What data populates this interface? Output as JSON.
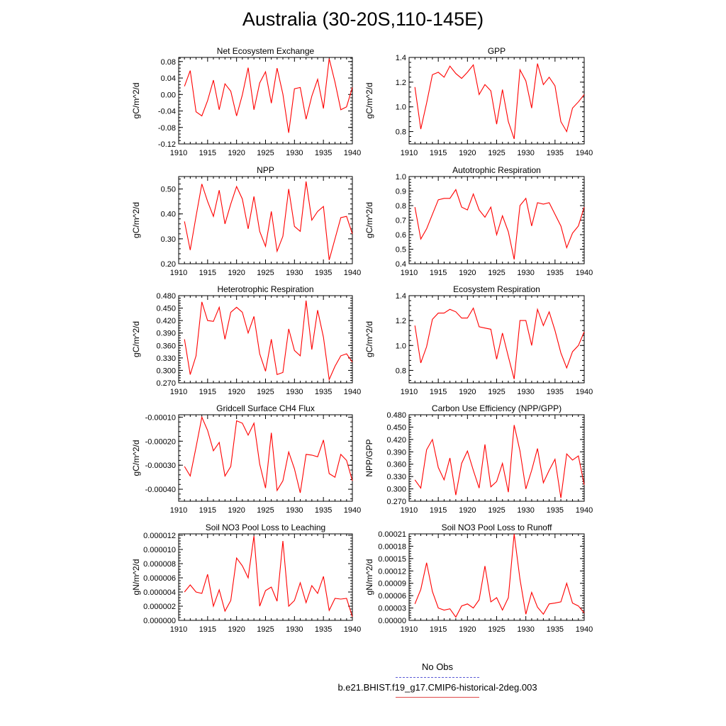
{
  "title": "Australia (30-20S,110-145E)",
  "colors": {
    "series_line": "#ff0000",
    "obs_line": "#5b5bd6",
    "model_line": "#e04a4a",
    "axis": "#000000"
  },
  "legend": {
    "obs_label": "No Obs",
    "model_label": "b.e21.BHIST.f19_g17.CMIP6-historical-2deg.003"
  },
  "chart_data": [
    {
      "type": "line",
      "title": "Net Ecosystem Exchange",
      "ylabel": "gC/m^2/d",
      "xlabel": "",
      "xlim": [
        1910,
        1940
      ],
      "ylim": [
        -0.12,
        0.09
      ],
      "xticks": [
        "1910",
        "1915",
        "1920",
        "1925",
        "1930",
        "1935",
        "1940"
      ],
      "yticks": [
        -0.12,
        -0.08,
        -0.04,
        0.0,
        0.04,
        0.08
      ],
      "ytick_labels": [
        "-0.12",
        "-0.08",
        "-0.04",
        "0.00",
        "0.04",
        "0.08"
      ],
      "x": [
        1911,
        1912,
        1913,
        1914,
        1915,
        1916,
        1917,
        1918,
        1919,
        1920,
        1921,
        1922,
        1923,
        1924,
        1925,
        1926,
        1927,
        1928,
        1929,
        1930,
        1931,
        1932,
        1933,
        1934,
        1935,
        1936,
        1937,
        1938,
        1939,
        1940
      ],
      "y": [
        0.02,
        0.058,
        -0.042,
        -0.052,
        -0.015,
        0.035,
        -0.037,
        0.026,
        0.008,
        -0.052,
        -0.001,
        0.065,
        -0.037,
        0.028,
        0.055,
        -0.021,
        0.064,
        0.001,
        -0.093,
        0.014,
        0.017,
        -0.06,
        -0.004,
        0.037,
        -0.034,
        0.087,
        0.03,
        -0.037,
        -0.03,
        0.017
      ]
    },
    {
      "type": "line",
      "title": "GPP",
      "ylabel": "gC/m^2/d",
      "xlabel": "",
      "xlim": [
        1910,
        1940
      ],
      "ylim": [
        0.7,
        1.4
      ],
      "xticks": [
        "1910",
        "1915",
        "1920",
        "1925",
        "1930",
        "1935",
        "1940"
      ],
      "yticks": [
        0.8,
        1.0,
        1.2,
        1.4
      ],
      "ytick_labels": [
        "0.8",
        "1.0",
        "1.2",
        "1.4"
      ],
      "x": [
        1911,
        1912,
        1913,
        1914,
        1915,
        1916,
        1917,
        1918,
        1919,
        1920,
        1921,
        1922,
        1923,
        1924,
        1925,
        1926,
        1927,
        1928,
        1929,
        1930,
        1931,
        1932,
        1933,
        1934,
        1935,
        1936,
        1937,
        1938,
        1939,
        1940
      ],
      "y": [
        1.16,
        0.82,
        1.03,
        1.26,
        1.28,
        1.24,
        1.33,
        1.27,
        1.23,
        1.28,
        1.34,
        1.1,
        1.18,
        1.13,
        0.86,
        1.14,
        0.88,
        0.74,
        1.3,
        1.21,
        0.99,
        1.35,
        1.18,
        1.24,
        1.17,
        0.88,
        0.8,
        0.99,
        1.04,
        1.1
      ]
    },
    {
      "type": "line",
      "title": "NPP",
      "ylabel": "gC/m^2/d",
      "xlabel": "",
      "xlim": [
        1910,
        1940
      ],
      "ylim": [
        0.2,
        0.55
      ],
      "xticks": [
        "1910",
        "1915",
        "1920",
        "1925",
        "1930",
        "1935",
        "1940"
      ],
      "yticks": [
        0.2,
        0.3,
        0.4,
        0.5
      ],
      "ytick_labels": [
        "0.20",
        "0.30",
        "0.40",
        "0.50"
      ],
      "x": [
        1911,
        1912,
        1913,
        1914,
        1915,
        1916,
        1917,
        1918,
        1919,
        1920,
        1921,
        1922,
        1923,
        1924,
        1925,
        1926,
        1927,
        1928,
        1929,
        1930,
        1931,
        1932,
        1933,
        1934,
        1935,
        1936,
        1937,
        1938,
        1939,
        1940
      ],
      "y": [
        0.37,
        0.255,
        0.39,
        0.52,
        0.45,
        0.39,
        0.495,
        0.36,
        0.44,
        0.51,
        0.46,
        0.34,
        0.47,
        0.33,
        0.27,
        0.41,
        0.25,
        0.31,
        0.5,
        0.35,
        0.33,
        0.53,
        0.375,
        0.41,
        0.43,
        0.215,
        0.3,
        0.385,
        0.39,
        0.32
      ]
    },
    {
      "type": "line",
      "title": "Autotrophic Respiration",
      "ylabel": "gC/m^2/d",
      "xlabel": "",
      "xlim": [
        1910,
        1940
      ],
      "ylim": [
        0.4,
        1.0
      ],
      "xticks": [
        "1910",
        "1915",
        "1920",
        "1925",
        "1930",
        "1935",
        "1940"
      ],
      "yticks": [
        0.4,
        0.5,
        0.6,
        0.7,
        0.8,
        0.9,
        1.0
      ],
      "ytick_labels": [
        "0.4",
        "0.5",
        "0.6",
        "0.7",
        "0.8",
        "0.9",
        "1.0"
      ],
      "x": [
        1911,
        1912,
        1913,
        1914,
        1915,
        1916,
        1917,
        1918,
        1919,
        1920,
        1921,
        1922,
        1923,
        1924,
        1925,
        1926,
        1927,
        1928,
        1929,
        1930,
        1931,
        1932,
        1933,
        1934,
        1935,
        1936,
        1937,
        1938,
        1939,
        1940
      ],
      "y": [
        0.79,
        0.57,
        0.64,
        0.74,
        0.84,
        0.85,
        0.85,
        0.91,
        0.79,
        0.77,
        0.88,
        0.77,
        0.72,
        0.79,
        0.6,
        0.73,
        0.62,
        0.43,
        0.8,
        0.85,
        0.66,
        0.82,
        0.81,
        0.82,
        0.74,
        0.66,
        0.51,
        0.61,
        0.66,
        0.79
      ]
    },
    {
      "type": "line",
      "title": "Heterotrophic Respiration",
      "ylabel": "gC/m^2/d",
      "xlabel": "",
      "xlim": [
        1910,
        1940
      ],
      "ylim": [
        0.27,
        0.48
      ],
      "xticks": [
        "1910",
        "1915",
        "1920",
        "1925",
        "1930",
        "1935",
        "1940"
      ],
      "yticks": [
        0.27,
        0.3,
        0.33,
        0.36,
        0.39,
        0.42,
        0.45,
        0.48
      ],
      "ytick_labels": [
        "0.270",
        "0.300",
        "0.330",
        "0.360",
        "0.390",
        "0.420",
        "0.450",
        "0.480"
      ],
      "x": [
        1911,
        1912,
        1913,
        1914,
        1915,
        1916,
        1917,
        1918,
        1919,
        1920,
        1921,
        1922,
        1923,
        1924,
        1925,
        1926,
        1927,
        1928,
        1929,
        1930,
        1931,
        1932,
        1933,
        1934,
        1935,
        1936,
        1937,
        1938,
        1939,
        1940
      ],
      "y": [
        0.375,
        0.29,
        0.335,
        0.465,
        0.42,
        0.418,
        0.452,
        0.375,
        0.44,
        0.452,
        0.44,
        0.39,
        0.43,
        0.34,
        0.298,
        0.375,
        0.29,
        0.295,
        0.4,
        0.348,
        0.335,
        0.468,
        0.35,
        0.445,
        0.38,
        0.278,
        0.31,
        0.335,
        0.34,
        0.32
      ]
    },
    {
      "type": "line",
      "title": "Ecosystem Respiration",
      "ylabel": "gC/m^2/d",
      "xlabel": "",
      "xlim": [
        1910,
        1940
      ],
      "ylim": [
        0.7,
        1.4
      ],
      "xticks": [
        "1910",
        "1915",
        "1920",
        "1925",
        "1930",
        "1935",
        "1940"
      ],
      "yticks": [
        0.8,
        1.0,
        1.2,
        1.4
      ],
      "ytick_labels": [
        "0.8",
        "1.0",
        "1.2",
        "1.4"
      ],
      "x": [
        1911,
        1912,
        1913,
        1914,
        1915,
        1916,
        1917,
        1918,
        1919,
        1920,
        1921,
        1922,
        1923,
        1924,
        1925,
        1926,
        1927,
        1928,
        1929,
        1930,
        1931,
        1932,
        1933,
        1934,
        1935,
        1936,
        1937,
        1938,
        1939,
        1940
      ],
      "y": [
        1.16,
        0.86,
        0.99,
        1.21,
        1.26,
        1.26,
        1.29,
        1.27,
        1.22,
        1.22,
        1.3,
        1.15,
        1.14,
        1.13,
        0.89,
        1.1,
        0.91,
        0.73,
        1.2,
        1.2,
        1.0,
        1.29,
        1.16,
        1.27,
        1.12,
        0.94,
        0.82,
        0.95,
        1.0,
        1.11
      ]
    },
    {
      "type": "line",
      "title": "Gridcell Surface CH4 Flux",
      "ylabel": "gC/m^2/d",
      "xlabel": "",
      "xlim": [
        1910,
        1940
      ],
      "ylim": [
        -0.00045,
        -9e-05
      ],
      "xticks": [
        "1910",
        "1915",
        "1920",
        "1925",
        "1930",
        "1935",
        "1940"
      ],
      "yticks": [
        -0.0004,
        -0.0003,
        -0.0002,
        -0.0001
      ],
      "ytick_labels": [
        "-0.00040",
        "-0.00030",
        "-0.00020",
        "-0.00010"
      ],
      "x": [
        1911,
        1912,
        1913,
        1914,
        1915,
        1916,
        1917,
        1918,
        1919,
        1920,
        1921,
        1922,
        1923,
        1924,
        1925,
        1926,
        1927,
        1928,
        1929,
        1930,
        1931,
        1932,
        1933,
        1934,
        1935,
        1936,
        1937,
        1938,
        1939,
        1940
      ],
      "y": [
        -0.000305,
        -0.000345,
        -0.000225,
        -0.0001,
        -0.000155,
        -0.00024,
        -0.000205,
        -0.000345,
        -0.000305,
        -0.000115,
        -0.000125,
        -0.000175,
        -0.000125,
        -0.000295,
        -0.000395,
        -0.000165,
        -0.000405,
        -0.000365,
        -0.000245,
        -0.000315,
        -0.000415,
        -0.000255,
        -0.000258,
        -0.000265,
        -0.000195,
        -0.000335,
        -0.00035,
        -0.000255,
        -0.00028,
        -0.000365
      ]
    },
    {
      "type": "line",
      "title": "Carbon Use Efficiency (NPP/GPP)",
      "ylabel": "NPP/GPP",
      "xlabel": "",
      "xlim": [
        1910,
        1940
      ],
      "ylim": [
        0.27,
        0.48
      ],
      "xticks": [
        "1910",
        "1915",
        "1920",
        "1925",
        "1930",
        "1935",
        "1940"
      ],
      "yticks": [
        0.27,
        0.3,
        0.33,
        0.36,
        0.39,
        0.42,
        0.45,
        0.48
      ],
      "ytick_labels": [
        "0.270",
        "0.300",
        "0.330",
        "0.360",
        "0.390",
        "0.420",
        "0.450",
        "0.480"
      ],
      "x": [
        1911,
        1912,
        1913,
        1914,
        1915,
        1916,
        1917,
        1918,
        1919,
        1920,
        1921,
        1922,
        1923,
        1924,
        1925,
        1926,
        1927,
        1928,
        1929,
        1930,
        1931,
        1932,
        1933,
        1934,
        1935,
        1936,
        1937,
        1938,
        1939,
        1940
      ],
      "y": [
        0.322,
        0.302,
        0.395,
        0.42,
        0.352,
        0.322,
        0.375,
        0.285,
        0.362,
        0.392,
        0.345,
        0.302,
        0.408,
        0.305,
        0.318,
        0.362,
        0.292,
        0.455,
        0.392,
        0.3,
        0.345,
        0.398,
        0.315,
        0.345,
        0.372,
        0.278,
        0.385,
        0.37,
        0.38,
        0.31
      ]
    },
    {
      "type": "line",
      "title": "Soil NO3 Pool Loss to Leaching",
      "ylabel": "gN/m^2/d",
      "xlabel": "",
      "xlim": [
        1910,
        1940
      ],
      "ylim": [
        0.0,
        1.22e-05
      ],
      "xticks": [
        "1910",
        "1915",
        "1920",
        "1925",
        "1930",
        "1935",
        "1940"
      ],
      "yticks": [
        0.0,
        2e-06,
        4e-06,
        6e-06,
        8e-06,
        1e-05,
        1.2e-05
      ],
      "ytick_labels": [
        "0.000000",
        "0.000002",
        "0.000004",
        "0.000006",
        "0.000008",
        "0.000010",
        "0.000012"
      ],
      "x": [
        1911,
        1912,
        1913,
        1914,
        1915,
        1916,
        1917,
        1918,
        1919,
        1920,
        1921,
        1922,
        1923,
        1924,
        1925,
        1926,
        1927,
        1928,
        1929,
        1930,
        1931,
        1932,
        1933,
        1934,
        1935,
        1936,
        1937,
        1938,
        1939,
        1940
      ],
      "y": [
        4e-06,
        5e-06,
        4e-06,
        3.8e-06,
        6.5e-06,
        2e-06,
        4.3e-06,
        1.3e-06,
        2.8e-06,
        8.8e-06,
        7.7e-06,
        6e-06,
        1.19e-05,
        2e-06,
        4.2e-06,
        4.7e-06,
        2.7e-06,
        1.12e-05,
        2e-06,
        2.8e-06,
        5.3e-06,
        2.5e-06,
        4.9e-06,
        3.8e-06,
        6.2e-06,
        1.4e-06,
        3.1e-06,
        3e-06,
        3.1e-06,
        5e-07
      ]
    },
    {
      "type": "line",
      "title": "Soil NO3 Pool Loss to Runoff",
      "ylabel": "gN/m^2/d",
      "xlabel": "",
      "xlim": [
        1910,
        1940
      ],
      "ylim": [
        0.0,
        0.00021
      ],
      "xticks": [
        "1910",
        "1915",
        "1920",
        "1925",
        "1930",
        "1935",
        "1940"
      ],
      "yticks": [
        0.0,
        3e-05,
        6e-05,
        9e-05,
        0.00012,
        0.00015,
        0.00018,
        0.00021
      ],
      "ytick_labels": [
        "0.00000",
        "0.00003",
        "0.00006",
        "0.00009",
        "0.00012",
        "0.00015",
        "0.00018",
        "0.00021"
      ],
      "x": [
        1911,
        1912,
        1913,
        1914,
        1915,
        1916,
        1917,
        1918,
        1919,
        1920,
        1921,
        1922,
        1923,
        1924,
        1925,
        1926,
        1927,
        1928,
        1929,
        1930,
        1931,
        1932,
        1933,
        1934,
        1935,
        1936,
        1937,
        1938,
        1939,
        1940
      ],
      "y": [
        4e-05,
        7.5e-05,
        0.00014,
        7e-05,
        3e-05,
        2.5e-05,
        2.8e-05,
        8e-06,
        3.5e-05,
        4e-05,
        3e-05,
        5e-05,
        0.000132,
        4.5e-05,
        5.5e-05,
        2.5e-05,
        5.5e-05,
        0.00021,
        0.0001,
        1.5e-05,
        6.8e-05,
        3.2e-05,
        1.5e-05,
        4e-05,
        4.2e-05,
        4.5e-05,
        9e-05,
        4.2e-05,
        3.5e-05,
        1.8e-05
      ]
    }
  ]
}
